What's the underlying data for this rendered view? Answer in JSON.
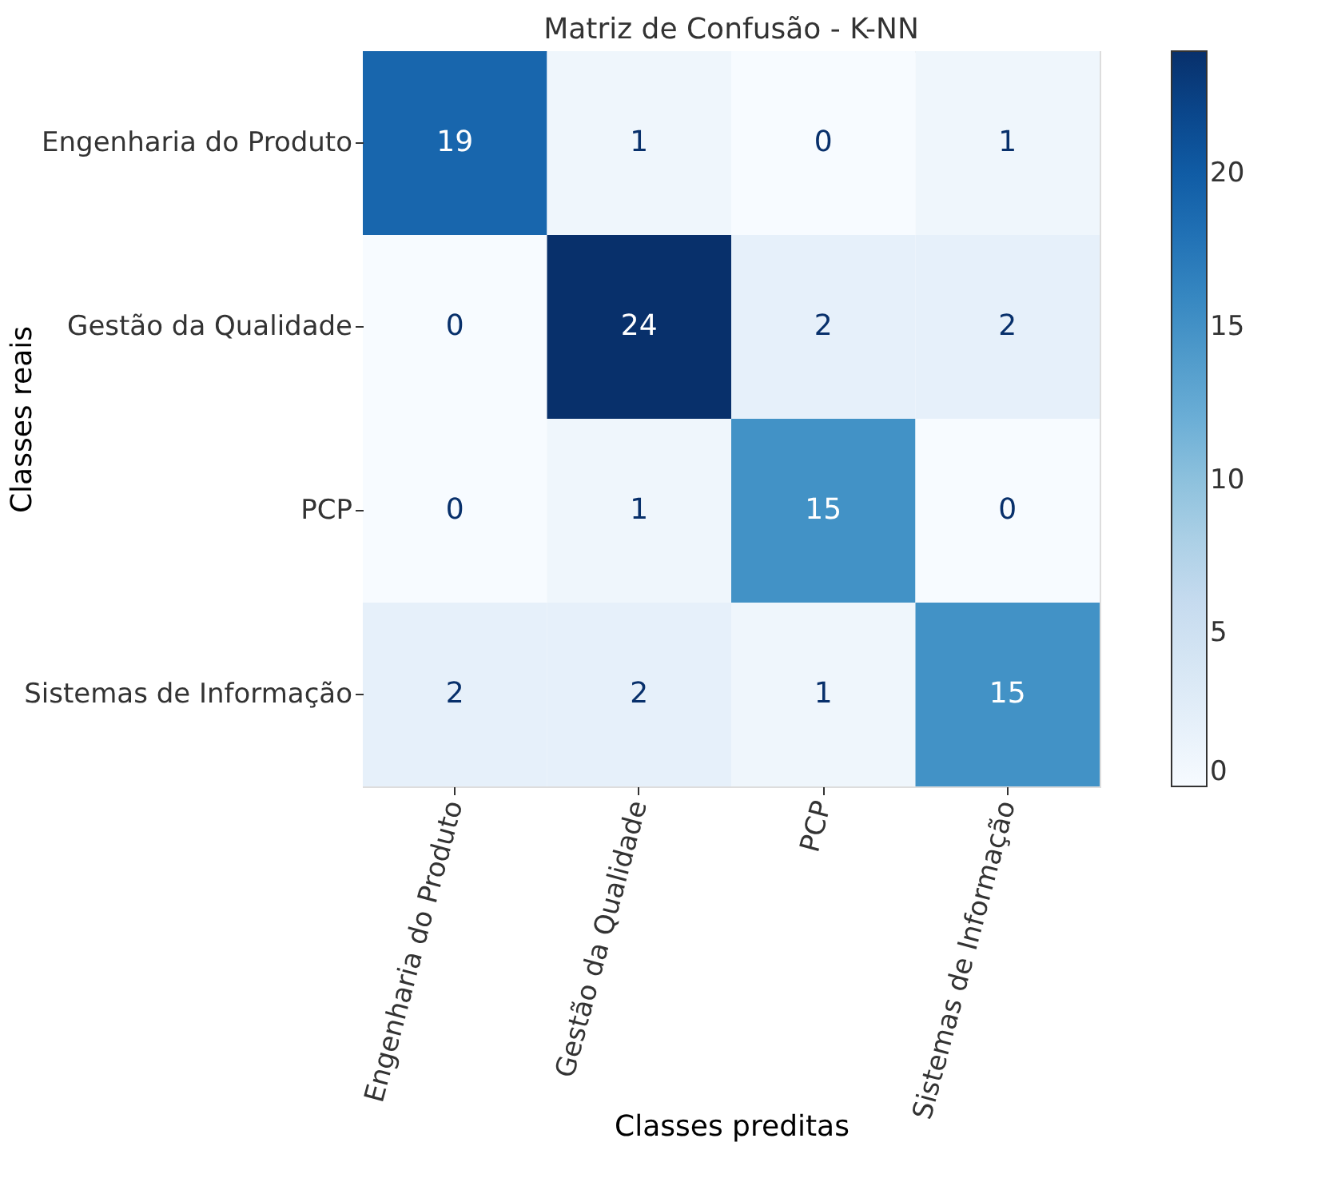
{
  "chart_data": {
    "type": "heatmap",
    "title": "Matriz de Confusão - K-NN",
    "xlabel": "Classes preditas",
    "ylabel": "Classes reais",
    "categories": [
      "Engenharia do Produto",
      "Gestão da Qualidade",
      "PCP",
      "Sistemas de Informação"
    ],
    "y_categories": [
      "Engenharia do Produto",
      "Gestão da Qualidade",
      "PCP",
      "Sistemas de Informação"
    ],
    "cells": [
      [
        19,
        1,
        0,
        1
      ],
      [
        0,
        24,
        2,
        2
      ],
      [
        0,
        1,
        15,
        0
      ],
      [
        2,
        2,
        1,
        15
      ]
    ],
    "data_labels": true,
    "clim": [
      0,
      24
    ],
    "cticks": [
      0,
      5,
      10,
      15,
      20
    ]
  }
}
